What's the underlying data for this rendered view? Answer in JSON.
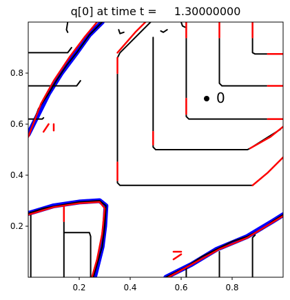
{
  "chart_data": {
    "type": "line",
    "title_prefix": "q[0] at time t =",
    "title_value": "1.30000000",
    "xlim": [
      0.0,
      1.0
    ],
    "ylim": [
      0.0,
      1.0
    ],
    "x_ticks": [
      {
        "value": 0.2,
        "label": "0.2"
      },
      {
        "value": 0.4,
        "label": "0.4"
      },
      {
        "value": 0.6,
        "label": "0.6"
      },
      {
        "value": 0.8,
        "label": "0.8"
      }
    ],
    "y_ticks": [
      {
        "value": 0.2,
        "label": "0.2"
      },
      {
        "value": 0.4,
        "label": "0.4"
      },
      {
        "value": 0.6,
        "label": "0.6"
      },
      {
        "value": 0.8,
        "label": "0.8"
      }
    ],
    "grid": false,
    "colors": {
      "contour": "#000000",
      "mesh_red": "#ff0000",
      "mesh_blue": "#0000ff"
    },
    "marker": {
      "x": 0.7,
      "y": 0.7,
      "label": "0"
    },
    "contours_black": [
      [
        [
          0.0,
          0.88
        ],
        [
          0.155,
          0.88
        ],
        [
          0.17,
          0.9
        ]
      ],
      [
        [
          0.0,
          0.75
        ],
        [
          0.19,
          0.75
        ],
        [
          0.205,
          0.77
        ]
      ],
      [
        [
          0.0,
          0.62
        ],
        [
          0.055,
          0.62
        ],
        [
          0.06,
          0.625
        ]
      ],
      [
        [
          0.155,
          1.0
        ],
        [
          0.15,
          0.97
        ],
        [
          0.155,
          0.96
        ]
      ],
      [
        [
          0.355,
          0.97
        ],
        [
          0.36,
          0.955
        ],
        [
          0.375,
          0.96
        ]
      ],
      [
        [
          0.52,
          0.965
        ],
        [
          0.53,
          0.96
        ],
        [
          0.545,
          0.97
        ]
      ],
      [
        [
          0.6,
          1.0
        ],
        [
          0.605,
          0.985
        ],
        [
          0.615,
          0.98
        ]
      ],
      [
        [
          0.88,
          1.0
        ],
        [
          0.88,
          0.88
        ],
        [
          0.89,
          0.875
        ],
        [
          1.0,
          0.875
        ]
      ],
      [
        [
          0.75,
          1.0
        ],
        [
          0.75,
          0.76
        ],
        [
          0.76,
          0.75
        ],
        [
          1.0,
          0.75
        ]
      ],
      [
        [
          0.62,
          1.0
        ],
        [
          0.62,
          0.63
        ],
        [
          0.63,
          0.62
        ],
        [
          1.0,
          0.62
        ]
      ],
      [
        [
          0.49,
          0.94
        ],
        [
          0.49,
          0.51
        ],
        [
          0.5,
          0.5
        ],
        [
          0.86,
          0.5
        ],
        [
          0.87,
          0.505
        ],
        [
          0.99,
          0.58
        ]
      ],
      [
        [
          0.29,
          1.0
        ],
        [
          0.26,
          0.97
        ],
        [
          0.24,
          0.95
        ],
        [
          0.19,
          0.88
        ],
        [
          0.15,
          0.83
        ],
        [
          0.11,
          0.77
        ],
        [
          0.08,
          0.72
        ],
        [
          0.04,
          0.66
        ],
        [
          0.0,
          0.55
        ]
      ],
      [
        [
          0.48,
          1.0
        ],
        [
          0.36,
          0.88
        ],
        [
          0.35,
          0.86
        ],
        [
          0.35,
          0.37
        ],
        [
          0.36,
          0.36
        ],
        [
          0.88,
          0.36
        ],
        [
          0.94,
          0.41
        ],
        [
          1.0,
          0.47
        ]
      ],
      [
        [
          0.0,
          0.25
        ],
        [
          0.06,
          0.27
        ],
        [
          0.14,
          0.285
        ],
        [
          0.2,
          0.295
        ],
        [
          0.28,
          0.3
        ],
        [
          0.305,
          0.28
        ],
        [
          0.3,
          0.2
        ],
        [
          0.29,
          0.12
        ],
        [
          0.27,
          0.05
        ],
        [
          0.255,
          0.0
        ]
      ],
      [
        [
          0.14,
          0.0
        ],
        [
          0.14,
          0.28
        ]
      ],
      [
        [
          0.01,
          0.0
        ],
        [
          0.01,
          0.255
        ]
      ],
      [
        [
          0.14,
          0.175
        ],
        [
          0.24,
          0.175
        ],
        [
          0.245,
          0.16
        ],
        [
          0.245,
          0.0
        ]
      ],
      [
        [
          0.54,
          0.0
        ],
        [
          0.62,
          0.04
        ],
        [
          0.68,
          0.08
        ],
        [
          0.74,
          0.11
        ],
        [
          0.8,
          0.14
        ],
        [
          0.86,
          0.16
        ],
        [
          0.92,
          0.19
        ],
        [
          0.96,
          0.22
        ],
        [
          1.0,
          0.245
        ]
      ],
      [
        [
          0.75,
          0.0
        ],
        [
          0.75,
          0.1
        ]
      ],
      [
        [
          0.88,
          0.0
        ],
        [
          0.88,
          0.155
        ],
        [
          0.89,
          0.165
        ]
      ],
      [
        [
          0.62,
          0.0
        ],
        [
          0.62,
          0.04
        ]
      ]
    ],
    "bands_blue": [
      [
        [
          0.29,
          1.0
        ],
        [
          0.24,
          0.95
        ],
        [
          0.19,
          0.88
        ],
        [
          0.13,
          0.8
        ],
        [
          0.08,
          0.72
        ],
        [
          0.0,
          0.56
        ]
      ],
      [
        [
          0.0,
          0.25
        ],
        [
          0.1,
          0.28
        ],
        [
          0.2,
          0.295
        ],
        [
          0.28,
          0.3
        ],
        [
          0.305,
          0.28
        ],
        [
          0.3,
          0.2
        ],
        [
          0.29,
          0.12
        ],
        [
          0.26,
          0.0
        ]
      ],
      [
        [
          0.54,
          0.0
        ],
        [
          0.64,
          0.05
        ],
        [
          0.74,
          0.11
        ],
        [
          0.86,
          0.16
        ],
        [
          0.96,
          0.22
        ],
        [
          1.0,
          0.245
        ]
      ]
    ],
    "segments_red": [
      [
        [
          0.27,
          1.0
        ],
        [
          0.22,
          0.94
        ],
        [
          0.16,
          0.86
        ],
        [
          0.1,
          0.77
        ],
        [
          0.05,
          0.68
        ],
        [
          0.0,
          0.55
        ]
      ],
      [
        [
          0.0,
          0.245
        ],
        [
          0.1,
          0.275
        ],
        [
          0.2,
          0.29
        ],
        [
          0.28,
          0.295
        ],
        [
          0.3,
          0.27
        ],
        [
          0.29,
          0.17
        ],
        [
          0.27,
          0.07
        ],
        [
          0.25,
          0.0
        ]
      ],
      [
        [
          0.55,
          0.0
        ],
        [
          0.65,
          0.055
        ],
        [
          0.75,
          0.11
        ],
        [
          0.86,
          0.155
        ],
        [
          0.95,
          0.21
        ],
        [
          1.0,
          0.24
        ]
      ],
      [
        [
          0.35,
          0.88
        ],
        [
          0.42,
          0.96
        ],
        [
          0.46,
          1.0
        ]
      ],
      [
        [
          0.88,
          0.36
        ],
        [
          0.94,
          0.41
        ],
        [
          1.0,
          0.47
        ]
      ],
      [
        [
          0.87,
          0.505
        ],
        [
          0.95,
          0.55
        ],
        [
          1.0,
          0.59
        ]
      ],
      [
        [
          0.35,
          0.86
        ],
        [
          0.35,
          0.8
        ]
      ],
      [
        [
          0.35,
          0.45
        ],
        [
          0.35,
          0.38
        ]
      ],
      [
        [
          0.62,
          0.94
        ],
        [
          0.62,
          1.0
        ]
      ],
      [
        [
          0.75,
          0.94
        ],
        [
          0.75,
          1.0
        ]
      ],
      [
        [
          0.88,
          0.94
        ],
        [
          0.88,
          1.0
        ]
      ],
      [
        [
          0.94,
          0.62
        ],
        [
          1.0,
          0.62
        ]
      ],
      [
        [
          0.94,
          0.75
        ],
        [
          1.0,
          0.75
        ]
      ],
      [
        [
          0.94,
          0.875
        ],
        [
          1.0,
          0.875
        ]
      ],
      [
        [
          0.62,
          0.64
        ],
        [
          0.62,
          0.7
        ]
      ],
      [
        [
          0.49,
          0.52
        ],
        [
          0.49,
          0.57
        ]
      ],
      [
        [
          0.1,
          0.575
        ],
        [
          0.1,
          0.6
        ]
      ],
      [
        [
          0.06,
          0.57
        ],
        [
          0.08,
          0.6
        ]
      ],
      [
        [
          0.14,
          0.22
        ],
        [
          0.14,
          0.28
        ]
      ],
      [
        [
          0.57,
          0.1
        ],
        [
          0.6,
          0.1
        ]
      ],
      [
        [
          0.57,
          0.07
        ],
        [
          0.6,
          0.09
        ]
      ]
    ]
  }
}
